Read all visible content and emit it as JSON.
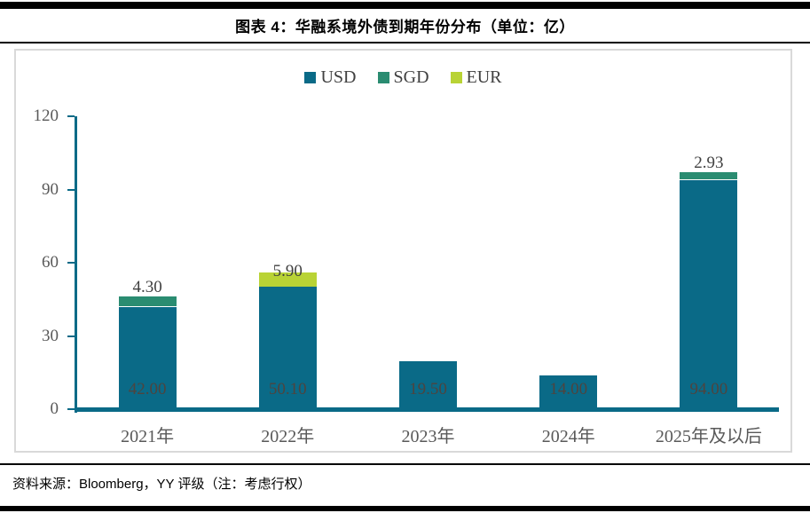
{
  "title": "图表 4：华融系境外债到期年份分布（单位：亿）",
  "footer": "资料来源：Bloomberg，YY 评级（注：考虑行权）",
  "chart_data": {
    "type": "bar",
    "stacked": true,
    "title": "图表 4：华融系境外债到期年份分布（单位：亿）",
    "categories": [
      "2021年",
      "2022年",
      "2023年",
      "2024年",
      "2025年及以后"
    ],
    "series": [
      {
        "name": "USD",
        "color": "#0a6a87",
        "values": [
          42.0,
          50.1,
          19.5,
          14.0,
          94.0
        ]
      },
      {
        "name": "SGD",
        "color": "#2a8c71",
        "values": [
          4.3,
          0,
          0,
          0,
          2.93
        ]
      },
      {
        "name": "EUR",
        "color": "#b9d335",
        "values": [
          0,
          5.9,
          0,
          0,
          0
        ]
      }
    ],
    "data_labels": {
      "inside": [
        "42.00",
        "50.10",
        "19.50",
        "14.00",
        "94.00"
      ],
      "outside": [
        "4.30",
        "5.90",
        "",
        "",
        "2.93"
      ]
    },
    "ylim": [
      0,
      120
    ],
    "yticks": [
      0,
      30,
      60,
      90,
      120
    ],
    "axis_color": "#0a6a87",
    "label_color_inside": "#4e443f",
    "label_color_outside": "#404040",
    "tick_label_color": "#595959",
    "legend_position": "top",
    "grid": false
  }
}
